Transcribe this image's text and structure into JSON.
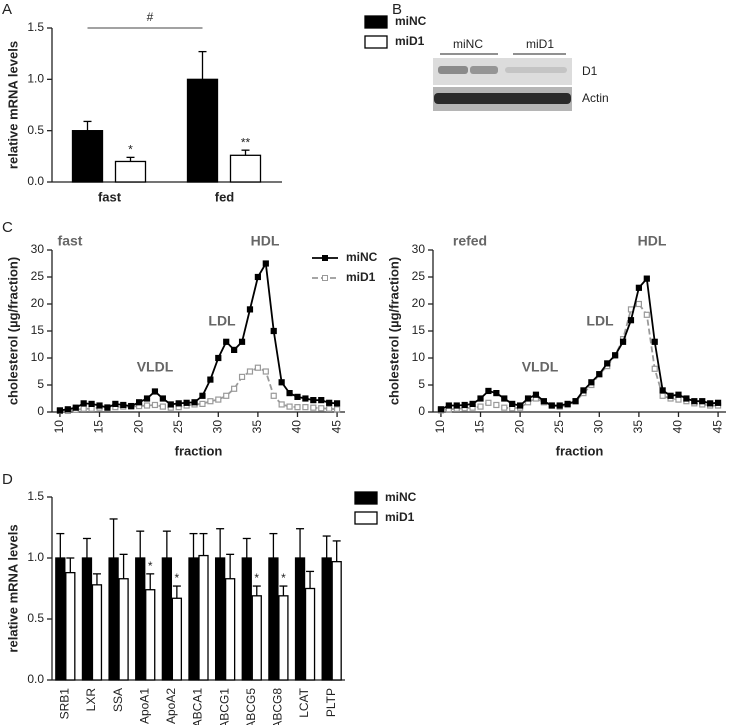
{
  "blot": {
    "panel": "B",
    "lanes": [
      "miNC",
      "miD1"
    ],
    "bands": [
      "D1",
      "Actin"
    ]
  },
  "chart_data": [
    {
      "type": "bar",
      "panel": "A",
      "ylabel": "relative mRNA levels",
      "categories": [
        "fast",
        "fed"
      ],
      "series": [
        {
          "name": "miNC",
          "color": "#000000",
          "values": [
            0.5,
            1.0
          ],
          "error": [
            0.09,
            0.27
          ]
        },
        {
          "name": "miD1",
          "color": "#ffffff",
          "values": [
            0.2,
            0.26
          ],
          "error": [
            0.04,
            0.05
          ],
          "significance": [
            "*",
            "**"
          ]
        }
      ],
      "ylim": [
        0,
        1.5
      ],
      "yticks": [
        {
          "value": 0,
          "label": "0.0"
        },
        {
          "value": 0.5,
          "label": "0.5"
        },
        {
          "value": 1.0,
          "label": "1.0"
        },
        {
          "value": 1.5,
          "label": "1.5"
        }
      ],
      "annotations": [
        "#"
      ],
      "legend": "right"
    },
    {
      "type": "line",
      "panel": "C",
      "xlabel": "fraction",
      "ylabel": "cholesterol (µg/fraction)",
      "x": [
        10,
        11,
        12,
        13,
        14,
        15,
        16,
        17,
        18,
        19,
        20,
        21,
        22,
        23,
        24,
        25,
        26,
        27,
        28,
        29,
        30,
        31,
        32,
        33,
        34,
        35,
        36,
        37,
        38,
        39,
        40,
        41,
        42,
        43,
        44,
        45
      ],
      "series": [
        {
          "name": "miNC",
          "color": "#000000",
          "values": [
            0.3,
            0.5,
            0.8,
            1.6,
            1.5,
            1.2,
            0.8,
            1.5,
            1.3,
            1.1,
            1.8,
            2.5,
            3.8,
            2.5,
            1.4,
            1.6,
            1.7,
            1.8,
            3,
            6,
            10,
            13,
            11.5,
            13,
            19,
            25,
            27.5,
            15,
            5.5,
            3.5,
            2.8,
            2.5,
            2.2,
            2.2,
            1.7,
            1.6
          ]
        },
        {
          "name": "miD1",
          "color": "#9a9a9a",
          "dashed": true,
          "values": [
            0.2,
            0.2,
            0.4,
            0.6,
            0.6,
            0.8,
            0.9,
            0.9,
            1,
            1,
            1.1,
            1.2,
            1.3,
            1,
            0.8,
            0.9,
            1.2,
            1.4,
            1.5,
            2,
            2.3,
            3,
            4.3,
            6.5,
            7.5,
            8.2,
            7.5,
            3,
            1.4,
            1,
            0.9,
            0.9,
            0.8,
            0.7,
            0.6,
            0.5
          ]
        }
      ],
      "xlim": [
        9,
        46
      ],
      "xticks": [
        10,
        15,
        20,
        25,
        30,
        35,
        40,
        45
      ],
      "ylim": [
        0,
        30
      ],
      "yticks": [
        0,
        5,
        10,
        15,
        20,
        25,
        30
      ],
      "annotations": [
        "fast",
        "VLDL",
        "LDL",
        "HDL"
      ],
      "legend": "upper right"
    },
    {
      "type": "line",
      "xlabel": "fraction",
      "ylabel": "cholesterol (µg/fraction)",
      "x": [
        10,
        11,
        12,
        13,
        14,
        15,
        16,
        17,
        18,
        19,
        20,
        21,
        22,
        23,
        24,
        25,
        26,
        27,
        28,
        29,
        30,
        31,
        32,
        33,
        34,
        35,
        36,
        37,
        38,
        39,
        40,
        41,
        42,
        43,
        44,
        45
      ],
      "series": [
        {
          "color": "#000000",
          "values": [
            0.5,
            1.2,
            1.2,
            1.3,
            1.5,
            2.5,
            3.9,
            3.5,
            2.5,
            1.5,
            1.2,
            2.5,
            3.2,
            2,
            1.2,
            1.2,
            1.5,
            2,
            4,
            5.5,
            7,
            9,
            10.5,
            13,
            17,
            23,
            24.7,
            13,
            4,
            3,
            3.2,
            2.5,
            2,
            2,
            1.6,
            1.7
          ]
        },
        {
          "color": "#9a9a9a",
          "dashed": true,
          "values": [
            0.3,
            0.5,
            0.6,
            0.7,
            0.8,
            1,
            1.7,
            1.3,
            0.8,
            0.7,
            0.8,
            1.8,
            2.5,
            1.8,
            1.2,
            1,
            1.3,
            2,
            3.5,
            5,
            7,
            8.5,
            10.5,
            13.5,
            19,
            20,
            18,
            8,
            3,
            2.5,
            2.3,
            2,
            1.6,
            1.4,
            1.2,
            1.2
          ]
        }
      ],
      "xlim": [
        9,
        46
      ],
      "xticks": [
        10,
        15,
        20,
        25,
        30,
        35,
        40,
        45
      ],
      "ylim": [
        0,
        30
      ],
      "yticks": [
        0,
        5,
        10,
        15,
        20,
        25,
        30
      ],
      "annotations": [
        "refed",
        "VLDL",
        "LDL",
        "HDL"
      ]
    },
    {
      "type": "bar",
      "panel": "D",
      "ylabel": "relative mRNA levels",
      "rotated_labels": true,
      "categories": [
        "SRB1",
        "LXR",
        "SSA",
        "ApoA1",
        "ApoA2",
        "ABCA1",
        "ABCG1",
        "ABCG5",
        "ABCG8",
        "LCAT",
        "PLTP"
      ],
      "series": [
        {
          "name": "miNC",
          "color": "#000000",
          "values": [
            1,
            1,
            1,
            1,
            1,
            1,
            1,
            1,
            1,
            1,
            1
          ],
          "error": [
            0.2,
            0.16,
            0.32,
            0.22,
            0.22,
            0.2,
            0.24,
            0.16,
            0.2,
            0.24,
            0.18
          ]
        },
        {
          "name": "miD1",
          "color": "#ffffff",
          "values": [
            0.88,
            0.78,
            0.83,
            0.74,
            0.67,
            1.02,
            0.83,
            0.69,
            0.69,
            0.75,
            0.97
          ],
          "error": [
            0.12,
            0.09,
            0.2,
            0.13,
            0.1,
            0.18,
            0.2,
            0.08,
            0.08,
            0.14,
            0.17
          ],
          "significance": [
            null,
            null,
            null,
            "*",
            "*",
            null,
            null,
            "*",
            "*",
            null,
            null
          ]
        }
      ],
      "ylim": [
        0,
        1.5
      ],
      "yticks": [
        {
          "value": 0,
          "label": "0.0"
        },
        {
          "value": 0.5,
          "label": "0.5"
        },
        {
          "value": 1.0,
          "label": "1.0"
        },
        {
          "value": 1.5,
          "label": "1.5"
        }
      ],
      "legend": "right"
    }
  ]
}
